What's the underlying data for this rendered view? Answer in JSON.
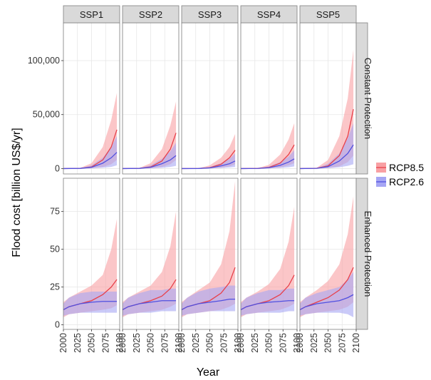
{
  "chart_data": {
    "type": "line",
    "ylabel": "Flood cost [billion US$/yr]",
    "xlabel": "Year",
    "xlim": [
      2000,
      2100
    ],
    "x_ticks": [
      "2000",
      "2025",
      "2050",
      "2075",
      "2100"
    ],
    "column_labels": [
      "SSP1",
      "SSP2",
      "SSP3",
      "SSP4",
      "SSP5"
    ],
    "row_labels": [
      "Constant Protection",
      "Enhanced Protection"
    ],
    "grid": true,
    "legend_position": "right",
    "legend": [
      {
        "name": "RCP8.5",
        "color": "#e8404a",
        "fill": "#f8a0a4"
      },
      {
        "name": "RCP2.6",
        "color": "#5050e0",
        "fill": "#a6a6f4"
      }
    ],
    "rows": [
      {
        "label": "Constant Protection",
        "ylim": [
          -5000,
          135000
        ],
        "y_ticks": [
          0,
          50000,
          100000
        ],
        "y_tick_labels": [
          "0",
          "50,000",
          "100,000"
        ],
        "panels": [
          {
            "ssp": "SSP1",
            "rcp85": {
              "x": [
                2000,
                2030,
                2050,
                2070,
                2085,
                2095
              ],
              "median": [
                0,
                200,
                1500,
                8000,
                20000,
                36000
              ],
              "low": [
                0,
                0,
                300,
                1500,
                4000,
                8000
              ],
              "high": [
                0,
                600,
                5000,
                20000,
                45000,
                70000
              ]
            },
            "rcp26": {
              "x": [
                2000,
                2030,
                2050,
                2070,
                2085,
                2095
              ],
              "median": [
                0,
                150,
                1200,
                5000,
                10000,
                15000
              ],
              "low": [
                0,
                0,
                200,
                800,
                1500,
                3000
              ],
              "high": [
                0,
                400,
                3000,
                10000,
                20000,
                30000
              ]
            }
          },
          {
            "ssp": "SSP2",
            "rcp85": {
              "x": [
                2000,
                2030,
                2050,
                2070,
                2085,
                2095
              ],
              "median": [
                0,
                200,
                1500,
                7000,
                18000,
                33000
              ],
              "low": [
                0,
                0,
                300,
                1500,
                4000,
                8000
              ],
              "high": [
                0,
                600,
                5000,
                18000,
                40000,
                62000
              ]
            },
            "rcp26": {
              "x": [
                2000,
                2030,
                2050,
                2070,
                2085,
                2095
              ],
              "median": [
                0,
                150,
                1200,
                4500,
                8000,
                12000
              ],
              "low": [
                0,
                0,
                200,
                700,
                1500,
                2500
              ],
              "high": [
                0,
                400,
                3000,
                9000,
                16000,
                24000
              ]
            }
          },
          {
            "ssp": "SSP3",
            "rcp85": {
              "x": [
                2000,
                2030,
                2050,
                2070,
                2085,
                2095
              ],
              "median": [
                0,
                100,
                800,
                4000,
                10000,
                17000
              ],
              "low": [
                0,
                0,
                200,
                800,
                2000,
                4000
              ],
              "high": [
                0,
                300,
                3000,
                10000,
                20000,
                32000
              ]
            },
            "rcp26": {
              "x": [
                2000,
                2030,
                2050,
                2070,
                2085,
                2095
              ],
              "median": [
                0,
                80,
                600,
                2500,
                4500,
                7000
              ],
              "low": [
                0,
                0,
                150,
                500,
                1000,
                1500
              ],
              "high": [
                0,
                200,
                1500,
                5000,
                9000,
                14000
              ]
            }
          },
          {
            "ssp": "SSP4",
            "rcp85": {
              "x": [
                2000,
                2030,
                2050,
                2070,
                2085,
                2095
              ],
              "median": [
                0,
                150,
                1000,
                5000,
                13000,
                22000
              ],
              "low": [
                0,
                0,
                250,
                1000,
                3000,
                5000
              ],
              "high": [
                0,
                400,
                3500,
                13000,
                27000,
                42000
              ]
            },
            "rcp26": {
              "x": [
                2000,
                2030,
                2050,
                2070,
                2085,
                2095
              ],
              "median": [
                0,
                100,
                800,
                3000,
                6000,
                9000
              ],
              "low": [
                0,
                0,
                150,
                600,
                1200,
                2000
              ],
              "high": [
                0,
                300,
                2000,
                6000,
                11000,
                17000
              ]
            }
          },
          {
            "ssp": "SSP5",
            "rcp85": {
              "x": [
                2000,
                2030,
                2050,
                2070,
                2085,
                2095
              ],
              "median": [
                0,
                300,
                2500,
                12000,
                30000,
                55000
              ],
              "low": [
                0,
                0,
                500,
                2000,
                6000,
                12000
              ],
              "high": [
                0,
                800,
                8000,
                30000,
                65000,
                110000
              ]
            },
            "rcp26": {
              "x": [
                2000,
                2030,
                2050,
                2070,
                2085,
                2095
              ],
              "median": [
                0,
                200,
                1800,
                7000,
                14000,
                22000
              ],
              "low": [
                0,
                0,
                300,
                1200,
                2500,
                4000
              ],
              "high": [
                0,
                500,
                4500,
                14000,
                28000,
                42000
              ]
            }
          }
        ]
      },
      {
        "label": "Enhanced Protection",
        "ylim": [
          -3,
          97
        ],
        "y_ticks": [
          0,
          25,
          50,
          75
        ],
        "y_tick_labels": [
          "0",
          "25",
          "50",
          "75"
        ],
        "panels": [
          {
            "ssp": "SSP1",
            "rcp85": {
              "x": [
                2000,
                2010,
                2030,
                2050,
                2070,
                2085,
                2095
              ],
              "median": [
                10,
                12,
                14,
                16,
                20,
                25,
                30
              ],
              "low": [
                5,
                7,
                8,
                9,
                10,
                11,
                13
              ],
              "high": [
                15,
                18,
                22,
                26,
                33,
                50,
                70
              ]
            },
            "rcp26": {
              "x": [
                2000,
                2010,
                2030,
                2050,
                2070,
                2085,
                2095
              ],
              "median": [
                10,
                12,
                14,
                15,
                15.5,
                15.5,
                15.5
              ],
              "low": [
                6,
                7,
                8,
                8,
                8,
                8,
                8
              ],
              "high": [
                14,
                18,
                21,
                22,
                22,
                22,
                22
              ]
            }
          },
          {
            "ssp": "SSP2",
            "rcp85": {
              "x": [
                2000,
                2010,
                2030,
                2050,
                2070,
                2085,
                2095
              ],
              "median": [
                10,
                12,
                14,
                16,
                19,
                24,
                30
              ],
              "low": [
                5,
                7,
                8,
                9,
                10,
                12,
                14
              ],
              "high": [
                15,
                18,
                22,
                26,
                35,
                52,
                75
              ]
            },
            "rcp26": {
              "x": [
                2000,
                2010,
                2030,
                2050,
                2070,
                2085,
                2095
              ],
              "median": [
                10,
                12,
                14,
                15,
                16,
                16,
                16
              ],
              "low": [
                6,
                7,
                8,
                8,
                9,
                9,
                9
              ],
              "high": [
                14,
                18,
                21,
                23,
                23,
                24,
                24
              ]
            }
          },
          {
            "ssp": "SSP3",
            "rcp85": {
              "x": [
                2000,
                2010,
                2030,
                2050,
                2070,
                2085,
                2095
              ],
              "median": [
                10,
                12,
                14,
                16,
                21,
                28,
                38
              ],
              "low": [
                5,
                7,
                8,
                9,
                10,
                12,
                14
              ],
              "high": [
                15,
                18,
                23,
                28,
                40,
                62,
                95
              ]
            },
            "rcp26": {
              "x": [
                2000,
                2010,
                2030,
                2050,
                2070,
                2085,
                2095
              ],
              "median": [
                10,
                12,
                14,
                15,
                16,
                17,
                17
              ],
              "low": [
                6,
                7,
                8,
                9,
                9,
                9,
                9
              ],
              "high": [
                14,
                18,
                22,
                24,
                25,
                26,
                26
              ]
            }
          },
          {
            "ssp": "SSP4",
            "rcp85": {
              "x": [
                2000,
                2010,
                2030,
                2050,
                2070,
                2085,
                2095
              ],
              "median": [
                10,
                12,
                14,
                16,
                20,
                26,
                33
              ],
              "low": [
                5,
                7,
                8,
                9,
                10,
                12,
                14
              ],
              "high": [
                15,
                18,
                22,
                27,
                37,
                55,
                78
              ]
            },
            "rcp26": {
              "x": [
                2000,
                2010,
                2030,
                2050,
                2070,
                2085,
                2095
              ],
              "median": [
                10,
                12,
                14,
                15,
                15.5,
                16,
                16
              ],
              "low": [
                6,
                7,
                8,
                8,
                8,
                9,
                9
              ],
              "high": [
                14,
                18,
                21,
                23,
                23,
                24,
                24
              ]
            }
          },
          {
            "ssp": "SSP5",
            "rcp85": {
              "x": [
                2000,
                2010,
                2030,
                2050,
                2070,
                2085,
                2095
              ],
              "median": [
                10,
                12,
                15,
                18,
                23,
                30,
                38
              ],
              "low": [
                5,
                7,
                8,
                9,
                10,
                12,
                15
              ],
              "high": [
                15,
                18,
                23,
                29,
                40,
                60,
                85
              ]
            },
            "rcp26": {
              "x": [
                2000,
                2010,
                2030,
                2050,
                2070,
                2085,
                2095
              ],
              "median": [
                10,
                12,
                14,
                15,
                16,
                18,
                20
              ],
              "low": [
                6,
                7,
                8,
                8,
                8,
                7,
                5
              ],
              "high": [
                14,
                18,
                21,
                23,
                25,
                30,
                35
              ]
            }
          }
        ]
      }
    ]
  }
}
